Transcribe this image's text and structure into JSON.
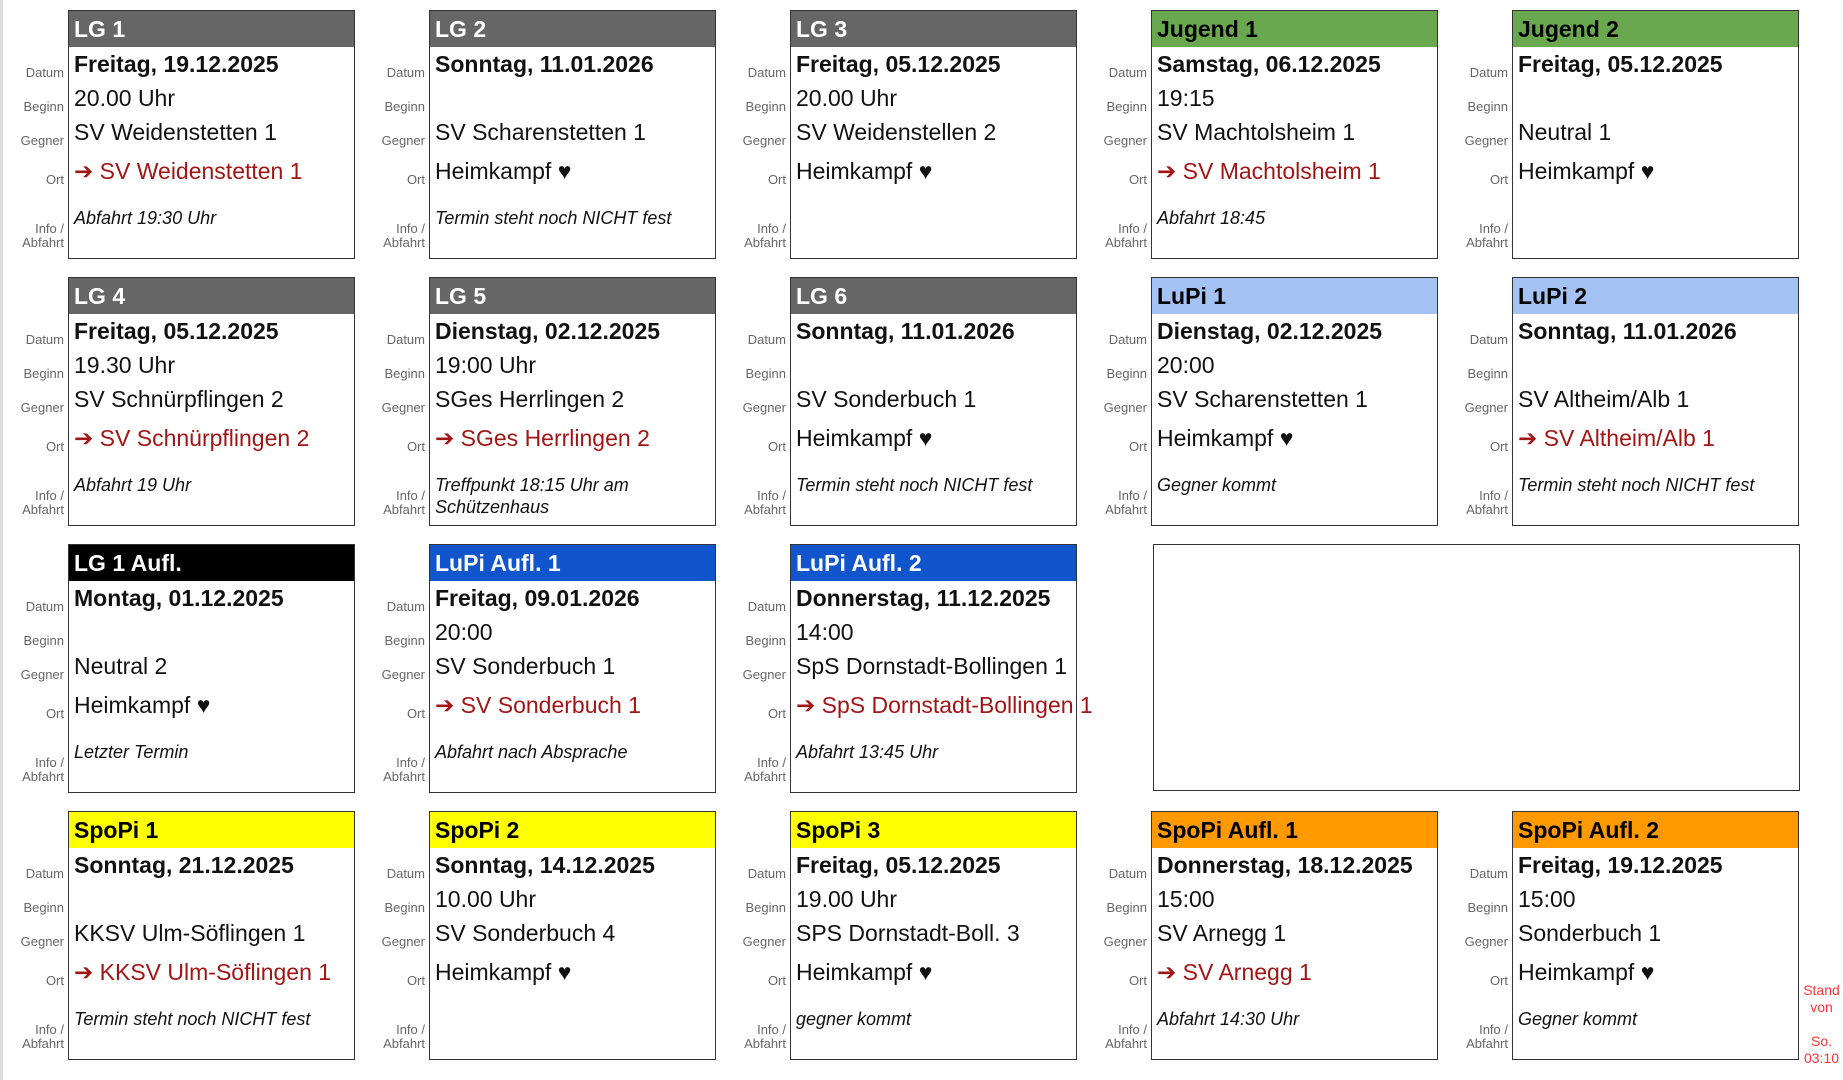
{
  "labels": {
    "datum": "Datum",
    "beginn": "Beginn",
    "gegner": "Gegner",
    "ort": "Ort",
    "info1": "Info /",
    "info2": "Abfahrt"
  },
  "cards": [
    {
      "title": "LG 1",
      "color": "#666666",
      "title_color": "#ffffff",
      "datum": "Freitag, 19.12.2025",
      "beginn": "20.00 Uhr",
      "gegner": "SV Weidenstetten 1",
      "ort": "➔ SV Weidenstetten 1",
      "away": true,
      "info": "Abfahrt 19:30 Uhr"
    },
    {
      "title": "LG 2",
      "color": "#666666",
      "title_color": "#ffffff",
      "datum": "Sonntag, 11.01.2026",
      "beginn": "",
      "gegner": "SV Scharenstetten 1",
      "ort": "Heimkampf ♥",
      "away": false,
      "info": "Termin steht noch NICHT fest"
    },
    {
      "title": "LG 3",
      "color": "#666666",
      "title_color": "#ffffff",
      "datum": "Freitag, 05.12.2025",
      "beginn": "20.00 Uhr",
      "gegner": "SV Weidenstellen 2",
      "ort": "Heimkampf ♥",
      "away": false,
      "info": ""
    },
    {
      "title": "Jugend 1",
      "color": "#6aa84f",
      "title_color": "#000000",
      "datum": "Samstag, 06.12.2025",
      "beginn": "19:15",
      "gegner": "SV Machtolsheim 1",
      "ort": "➔ SV Machtolsheim 1",
      "away": true,
      "info": "Abfahrt 18:45"
    },
    {
      "title": "Jugend 2",
      "color": "#6aa84f",
      "title_color": "#000000",
      "datum": "Freitag, 05.12.2025",
      "beginn": "",
      "gegner": "Neutral 1",
      "ort": "Heimkampf ♥",
      "away": false,
      "info": ""
    },
    {
      "title": "LG 4",
      "color": "#666666",
      "title_color": "#ffffff",
      "datum": "Freitag, 05.12.2025",
      "beginn": "19.30 Uhr",
      "gegner": "SV Schnürpflingen 2",
      "ort": "➔ SV Schnürpflingen 2",
      "away": true,
      "info": "Abfahrt 19 Uhr"
    },
    {
      "title": "LG 5",
      "color": "#666666",
      "title_color": "#ffffff",
      "datum": "Dienstag, 02.12.2025",
      "beginn": "19:00 Uhr",
      "gegner": "SGes Herrlingen 2",
      "ort": "➔ SGes Herrlingen 2",
      "away": true,
      "info": "Treffpunkt 18:15 Uhr am Schützenhaus"
    },
    {
      "title": "LG 6",
      "color": "#666666",
      "title_color": "#ffffff",
      "datum": "Sonntag, 11.01.2026",
      "beginn": "",
      "gegner": "SV Sonderbuch 1",
      "ort": "Heimkampf ♥",
      "away": false,
      "info": "Termin steht noch NICHT fest"
    },
    {
      "title": "LuPi 1",
      "color": "#a4c2f4",
      "title_color": "#000000",
      "datum": "Dienstag, 02.12.2025",
      "beginn": "20:00",
      "gegner": "SV Scharenstetten 1",
      "ort": "Heimkampf ♥",
      "away": false,
      "info": "Gegner kommt"
    },
    {
      "title": "LuPi 2",
      "color": "#a4c2f4",
      "title_color": "#000000",
      "datum": "Sonntag, 11.01.2026",
      "beginn": "",
      "gegner": "SV Altheim/Alb 1",
      "ort": "➔ SV Altheim/Alb 1",
      "away": true,
      "info": "Termin steht noch NICHT fest"
    },
    {
      "title": "LG 1 Aufl.",
      "color": "#000000",
      "title_color": "#ffffff",
      "datum": "Montag, 01.12.2025",
      "beginn": "",
      "gegner": "Neutral 2",
      "ort": "Heimkampf ♥",
      "away": false,
      "info": "Letzter Termin"
    },
    {
      "title": "LuPi Aufl. 1",
      "color": "#1155cc",
      "title_color": "#ffffff",
      "datum": "Freitag, 09.01.2026",
      "beginn": "20:00",
      "gegner": "SV Sonderbuch 1",
      "ort": "➔ SV Sonderbuch 1",
      "away": true,
      "info": "Abfahrt nach Absprache"
    },
    {
      "title": "LuPi Aufl. 2",
      "color": "#1155cc",
      "title_color": "#ffffff",
      "datum": "Donnerstag, 11.12.2025",
      "beginn": "14:00",
      "gegner": "SpS Dornstadt-Bollingen 1",
      "ort": "➔ SpS Dornstadt-Bollingen 1",
      "away": true,
      "info": "Abfahrt 13:45 Uhr"
    },
    null,
    null,
    {
      "title": "SpoPi 1",
      "color": "#ffff00",
      "title_color": "#000000",
      "datum": "Sonntag, 21.12.2025",
      "beginn": "",
      "gegner": "KKSV Ulm-Söflingen 1",
      "ort": "➔ KKSV Ulm-Söflingen 1",
      "away": true,
      "info": "Termin steht noch NICHT fest"
    },
    {
      "title": "SpoPi 2",
      "color": "#ffff00",
      "title_color": "#000000",
      "datum": "Sonntag, 14.12.2025",
      "beginn": "10.00 Uhr",
      "gegner": "SV Sonderbuch 4",
      "ort": "Heimkampf ♥",
      "away": false,
      "info": ""
    },
    {
      "title": "SpoPi 3",
      "color": "#ffff00",
      "title_color": "#000000",
      "datum": "Freitag, 05.12.2025",
      "beginn": "19.00 Uhr",
      "gegner": "SPS Dornstadt-Boll. 3",
      "ort": "Heimkampf ♥",
      "away": false,
      "info": "gegner kommt"
    },
    {
      "title": "SpoPi Aufl. 1",
      "color": "#ff9900",
      "title_color": "#000000",
      "datum": "Donnerstag, 18.12.2025",
      "beginn": "15:00",
      "gegner": "SV Arnegg 1",
      "ort": "➔ SV Arnegg 1",
      "away": true,
      "info": "Abfahrt 14:30 Uhr"
    },
    {
      "title": "SpoPi Aufl. 2",
      "color": "#ff9900",
      "title_color": "#000000",
      "datum": "Freitag, 19.12.2025",
      "beginn": "15:00",
      "gegner": "Sonderbuch 1",
      "ort": "Heimkampf ♥",
      "away": false,
      "info": "Gegner kommt"
    }
  ],
  "stand": {
    "line1": "Stand",
    "line2": "von",
    "line3": "So.",
    "line4": "03:10",
    "color": "#ff3333"
  }
}
